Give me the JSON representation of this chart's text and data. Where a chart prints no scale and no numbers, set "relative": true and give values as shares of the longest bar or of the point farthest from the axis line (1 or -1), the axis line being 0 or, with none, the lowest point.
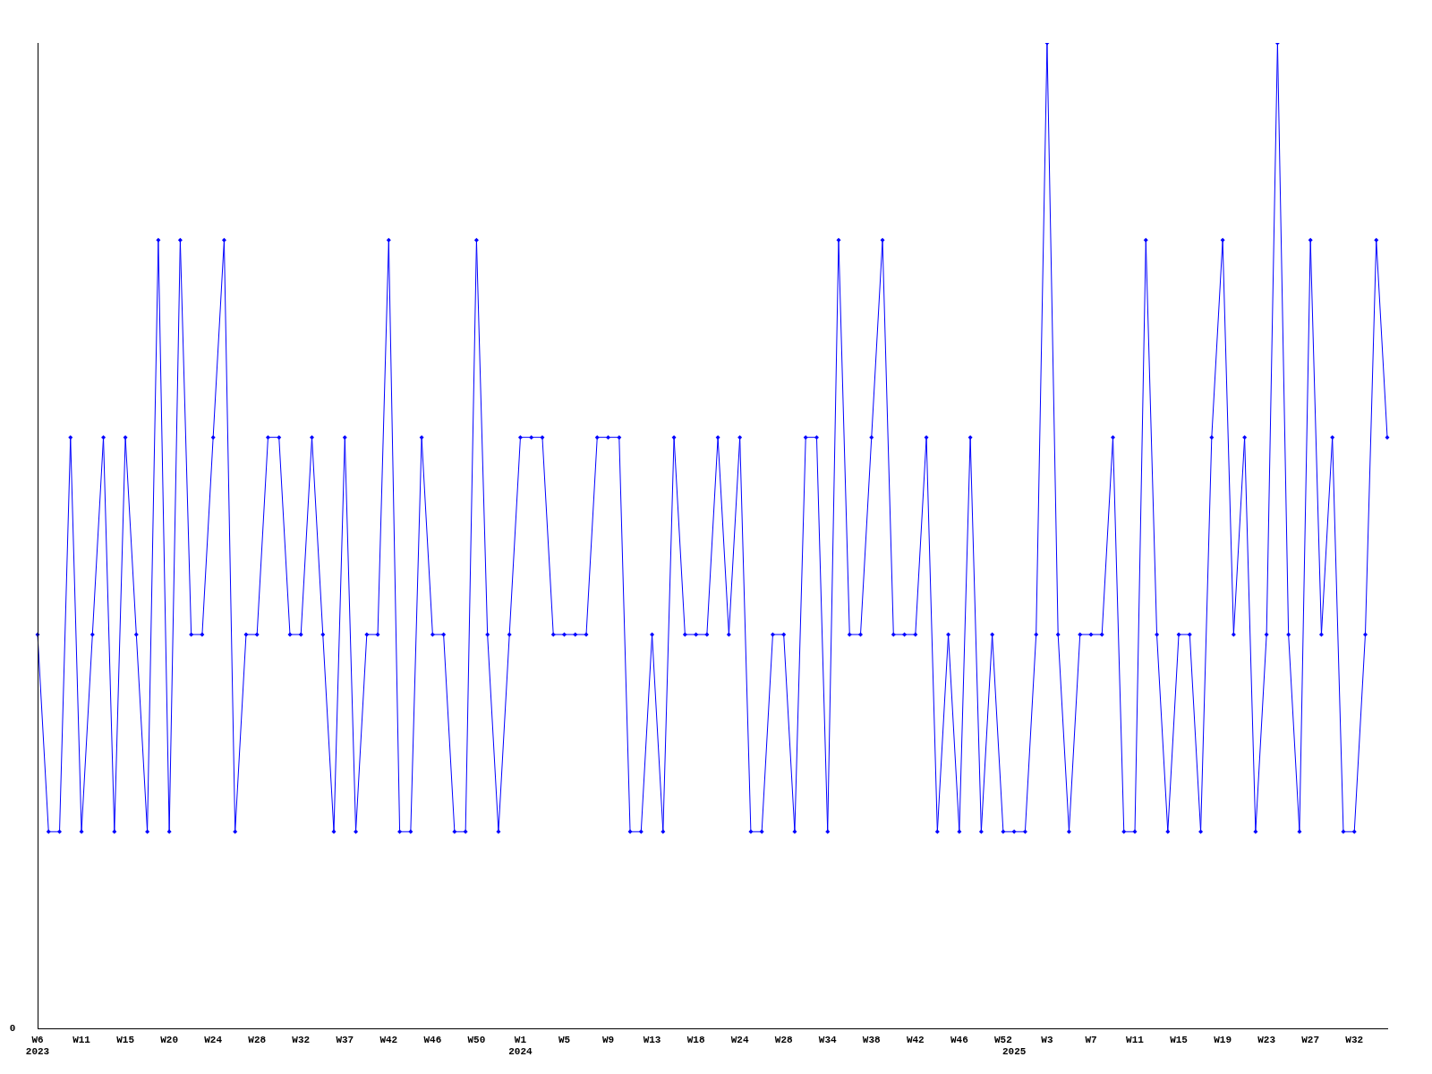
{
  "chart_data": {
    "type": "line",
    "relative": true,
    "color": "#0000ff",
    "marker": "diamond",
    "line_style": "solid",
    "grid": false,
    "legend": false,
    "categories": [
      "W6\n2023",
      null,
      null,
      null,
      "W11",
      null,
      null,
      null,
      "W15",
      null,
      null,
      null,
      "W20",
      null,
      null,
      null,
      "W24",
      null,
      null,
      null,
      "W28",
      null,
      null,
      null,
      "W32",
      null,
      null,
      null,
      "W37",
      null,
      null,
      null,
      "W42",
      null,
      null,
      null,
      "W46",
      null,
      null,
      null,
      "W50",
      null,
      null,
      null,
      "W1\n2024",
      null,
      null,
      null,
      "W5",
      null,
      null,
      null,
      "W9",
      null,
      null,
      null,
      "W13",
      null,
      null,
      null,
      "W18",
      null,
      null,
      null,
      "W24",
      null,
      null,
      null,
      "W28",
      null,
      null,
      null,
      "W34",
      null,
      null,
      null,
      "W38",
      null,
      null,
      null,
      "W42",
      null,
      null,
      null,
      "W46",
      null,
      null,
      null,
      "W52",
      "\n2025",
      null,
      null,
      "W3",
      null,
      null,
      null,
      "W7",
      null,
      null,
      null,
      "W11",
      null,
      null,
      null,
      "W15",
      null,
      null,
      null,
      "W19",
      null,
      null,
      null,
      "W23",
      null,
      null,
      null,
      "W27",
      null,
      null,
      null,
      "W32",
      null,
      null,
      null
    ],
    "values": [
      0.4,
      0.2,
      0.2,
      0.6,
      0.2,
      0.4,
      0.6,
      0.2,
      0.6,
      0.4,
      0.2,
      0.8,
      0.2,
      0.8,
      0.4,
      0.4,
      0.6,
      0.8,
      0.2,
      0.4,
      0.4,
      0.6,
      0.6,
      0.4,
      0.4,
      0.6,
      0.4,
      0.2,
      0.6,
      0.2,
      0.4,
      0.4,
      0.8,
      0.2,
      0.2,
      0.6,
      0.4,
      0.4,
      0.2,
      0.2,
      0.8,
      0.4,
      0.2,
      0.4,
      0.6,
      0.6,
      0.6,
      0.4,
      0.4,
      0.4,
      0.4,
      0.6,
      0.6,
      0.6,
      0.2,
      0.2,
      0.4,
      0.2,
      0.6,
      0.4,
      0.4,
      0.4,
      0.6,
      0.4,
      0.6,
      0.2,
      0.2,
      0.4,
      0.4,
      0.2,
      0.6,
      0.6,
      0.2,
      0.8,
      0.4,
      0.4,
      0.6,
      0.8,
      0.4,
      0.4,
      0.4,
      0.6,
      0.2,
      0.4,
      0.2,
      0.6,
      0.2,
      0.4,
      0.2,
      0.2,
      0.2,
      0.4,
      1,
      0.4,
      0.2,
      0.4,
      0.4,
      0.4,
      0.6,
      0.2,
      0.2,
      0.8,
      0.4,
      0.2,
      0.4,
      0.4,
      0.2,
      0.6,
      0.8,
      0.4,
      0.6,
      0.2,
      0.4,
      1,
      0.4,
      0.2,
      0.8,
      0.4,
      0.6,
      0.2,
      0.2,
      0.4,
      0.8,
      0.6
    ],
    "annotations": [
      "0"
    ]
  }
}
